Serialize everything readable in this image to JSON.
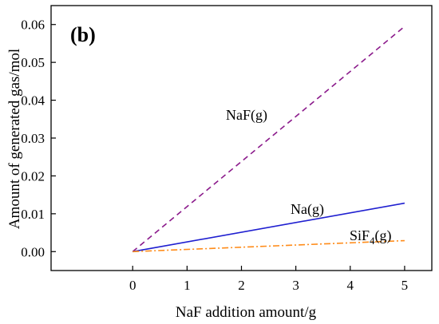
{
  "chart_data": {
    "type": "line",
    "panel_label": "(b)",
    "xlabel": "NaF addition amount/g",
    "ylabel": "Amount of generated gas/mol",
    "xlim": [
      -1.5,
      5.5
    ],
    "ylim": [
      -0.005,
      0.065
    ],
    "xticks": [
      0,
      1,
      2,
      3,
      4,
      5
    ],
    "xtick_labels": [
      "0",
      "1",
      "2",
      "3",
      "4",
      "5"
    ],
    "yticks": [
      0.0,
      0.01,
      0.02,
      0.03,
      0.04,
      0.05,
      0.06
    ],
    "ytick_labels": [
      "0.00",
      "0.01",
      "0.02",
      "0.03",
      "0.04",
      "0.05",
      "0.06"
    ],
    "grid": false,
    "series": [
      {
        "label_main": "NaF",
        "label_sub": "",
        "label_suffix": "(g)",
        "color": "#8b1a8b",
        "dash": "dashed",
        "x": [
          0,
          5
        ],
        "y": [
          0.0,
          0.0595
        ]
      },
      {
        "label_main": "Na",
        "label_sub": "",
        "label_suffix": "(g)",
        "color": "#1f1fd0",
        "dash": "solid",
        "x": [
          0,
          5
        ],
        "y": [
          0.0,
          0.0128
        ]
      },
      {
        "label_main": "SiF",
        "label_sub": "4",
        "label_suffix": "(g)",
        "color": "#ff8c1a",
        "dash": "dashdot",
        "x": [
          0,
          5
        ],
        "y": [
          0.0,
          0.0029
        ]
      }
    ]
  }
}
